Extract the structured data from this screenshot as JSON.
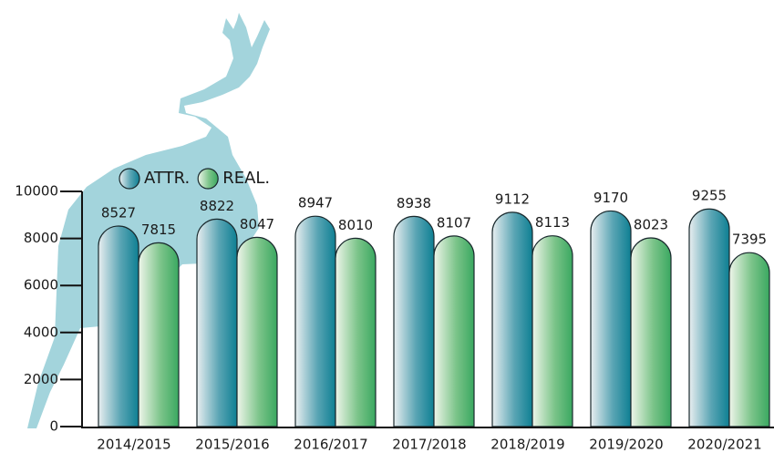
{
  "chart_data": {
    "type": "bar",
    "categories": [
      "2014/2015",
      "2015/2016",
      "2016/2017",
      "2017/2018",
      "2018/2019",
      "2019/2020",
      "2020/2021"
    ],
    "series": [
      {
        "name": "ATTR.",
        "color": "#0e7f93",
        "values": [
          8527,
          8822,
          8947,
          8938,
          9112,
          9170,
          9255
        ]
      },
      {
        "name": "REAL.",
        "color": "#3aa860",
        "values": [
          7815,
          8047,
          8010,
          8107,
          8113,
          8023,
          7395
        ]
      }
    ],
    "ylim": [
      0,
      10000
    ],
    "yticks": [
      0,
      2000,
      4000,
      6000,
      8000,
      10000
    ]
  }
}
